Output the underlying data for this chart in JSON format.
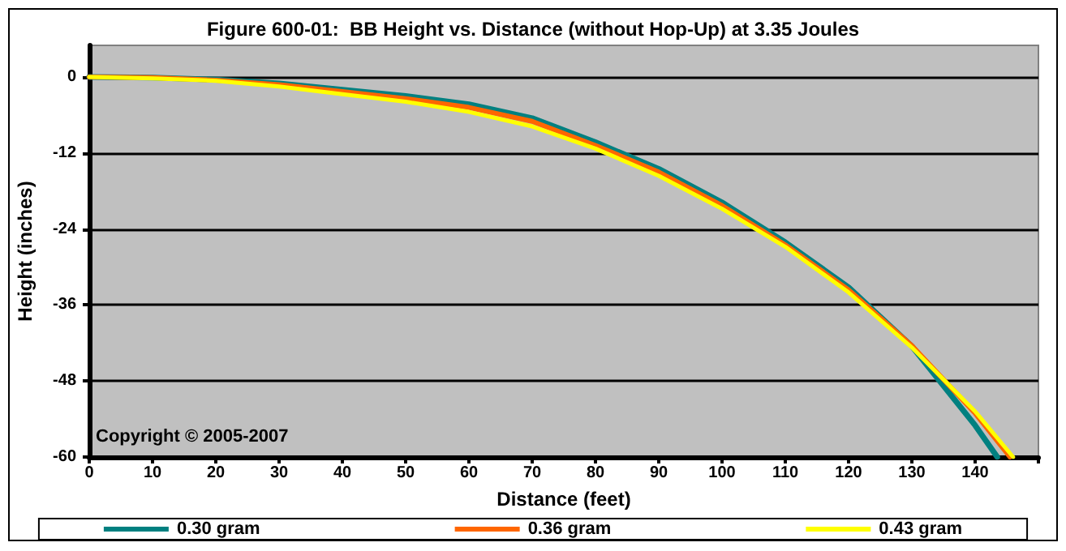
{
  "chart_data": {
    "type": "line",
    "title": "Figure 600-01:  BB Height vs. Distance (without Hop-Up) at 3.35 Joules",
    "xlabel": "Distance (feet)",
    "ylabel": "Height (inches)",
    "annotations": [
      "Copyright © 2005-2007"
    ],
    "xlim": [
      0,
      150
    ],
    "xticks": [
      0,
      10,
      20,
      30,
      40,
      50,
      60,
      70,
      80,
      90,
      100,
      110,
      120,
      130,
      140,
      {
        "value": 150,
        "label": null
      }
    ],
    "ylim": [
      -60,
      5
    ],
    "yticks": [
      -60,
      -48,
      -36,
      -24,
      -12,
      0
    ],
    "grid": "y",
    "legend": "bottom",
    "marker": "none",
    "line_style": "solid",
    "series": [
      {
        "name": "0.30 gram",
        "color": "#008080",
        "x": [
          0,
          10,
          20,
          30,
          40,
          50,
          60,
          70,
          80,
          90,
          100,
          110,
          120,
          130,
          140,
          143.5
        ],
        "values": [
          0,
          -0.1,
          -0.4,
          -1.0,
          -2.0,
          -3.0,
          -4.3,
          -6.5,
          -10.3,
          -14.5,
          -19.8,
          -26.1,
          -33.2,
          -42.5,
          -55,
          -60
        ]
      },
      {
        "name": "0.36 gram",
        "color": "#ff6600",
        "x": [
          0,
          10,
          20,
          30,
          40,
          50,
          60,
          70,
          80,
          90,
          100,
          110,
          120,
          130,
          140,
          145.5
        ],
        "values": [
          0,
          -0.1,
          -0.5,
          -1.2,
          -2.3,
          -3.4,
          -4.8,
          -7.0,
          -10.8,
          -15,
          -20.3,
          -26.5,
          -33.6,
          -42.4,
          -53.1,
          -60
        ]
      },
      {
        "name": "0.43 gram",
        "color": "#ffff00",
        "x": [
          0,
          10,
          20,
          30,
          40,
          50,
          60,
          70,
          80,
          90,
          100,
          110,
          120,
          130,
          140,
          146
        ],
        "values": [
          0,
          -0.2,
          -0.6,
          -1.5,
          -2.7,
          -3.9,
          -5.5,
          -7.8,
          -11.3,
          -15.6,
          -20.8,
          -26.8,
          -34,
          -42.7,
          -52.8,
          -60
        ]
      }
    ]
  }
}
